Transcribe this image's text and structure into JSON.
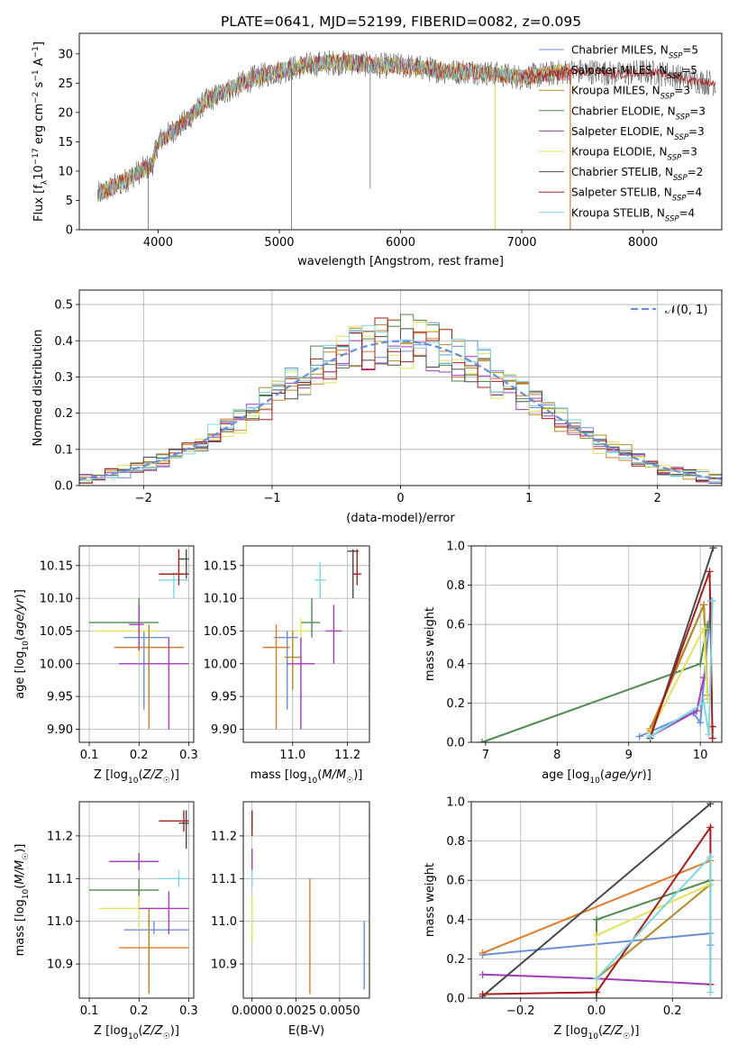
{
  "figure_title": "PLATE=0641, MJD=52199, FIBERID=0082, z=0.095",
  "colors": [
    "#6b8fd6",
    "#e07b27",
    "#b08a25",
    "#4f8a4f",
    "#a43bbd",
    "#e3e35a",
    "#4a4a4a",
    "#a91c1c",
    "#7dd7e0"
  ],
  "chart_data": [
    {
      "id": "spectrum",
      "type": "line",
      "title": "PLATE=0641, MJD=52199, FIBERID=0082, z=0.095",
      "xlabel": "wavelength [Angstrom, rest frame]",
      "ylabel": "Flux [f_λ 10^{-17} erg cm^{-2} s^{-1} A^{-1}]",
      "xlim": [
        3350,
        8650
      ],
      "ylim": [
        0,
        33.5
      ],
      "xticks": [
        "4000",
        "5000",
        "6000",
        "7000",
        "8000"
      ],
      "yticks": [
        "0",
        "5",
        "10",
        "15",
        "20",
        "25",
        "30"
      ],
      "legend_position": "top-right",
      "legend": [
        {
          "main": "Chabrier MILES, N",
          "sub": "SSP",
          "tail": "=5"
        },
        {
          "main": "Salpeter MILES, N",
          "sub": "SSP",
          "tail": "=5"
        },
        {
          "main": "Kroupa MILES, N",
          "sub": "SSP",
          "tail": "=3"
        },
        {
          "main": "Chabrier ELODIE, N",
          "sub": "SSP",
          "tail": "=3"
        },
        {
          "main": "Salpeter ELODIE, N",
          "sub": "SSP",
          "tail": "=3"
        },
        {
          "main": "Kroupa ELODIE, N",
          "sub": "SSP",
          "tail": "=3"
        },
        {
          "main": "Chabrier STELIB, N",
          "sub": "SSP",
          "tail": "=2"
        },
        {
          "main": "Salpeter STELIB, N",
          "sub": "SSP",
          "tail": "=4"
        },
        {
          "main": "Kroupa STELIB, N",
          "sub": "SSP",
          "tail": "=4"
        }
      ],
      "continuum": {
        "x": [
          3500,
          3700,
          3850,
          3950,
          4000,
          4200,
          4400,
          4600,
          4800,
          5000,
          5200,
          5400,
          5600,
          5800,
          6000,
          6200,
          6400,
          6600,
          6800,
          7000,
          7200,
          7400,
          7600,
          7800,
          8000,
          8200,
          8400,
          8600
        ],
        "y": [
          6,
          8,
          10,
          11,
          15,
          18,
          22,
          24,
          26,
          27,
          28,
          28.5,
          28.5,
          28,
          28,
          27.5,
          27,
          27,
          26.5,
          26,
          26.5,
          27,
          27,
          26.5,
          27,
          26.5,
          25.5,
          25
        ]
      },
      "model_range": [
        3500,
        7400
      ],
      "spikes": [
        {
          "x": 5100,
          "ymin": 0
        },
        {
          "x": 5750,
          "ymin": 7
        },
        {
          "x": 6780,
          "ymin": 0
        },
        {
          "x": 7400,
          "ymin": 0
        },
        {
          "x": 3920,
          "ymin": 0
        }
      ]
    },
    {
      "id": "residuals",
      "type": "histogram",
      "xlabel": "(data-model)/error",
      "ylabel": "Normed distribution",
      "xlim": [
        -2.5,
        2.5
      ],
      "ylim": [
        0,
        0.54
      ],
      "xticks": [
        "−2",
        "−1",
        "0",
        "1",
        "2"
      ],
      "yticks": [
        "0.0",
        "0.1",
        "0.2",
        "0.3",
        "0.4",
        "0.5"
      ],
      "legend_position": "top-right",
      "gaussian_label": "𝒩(0, 1)",
      "bin_width": 0.1
    },
    {
      "id": "age_vs_z",
      "type": "scatter",
      "xlabel": "Z [log10(Z/Z☉)]",
      "ylabel": "age  [log10(age/yr)]",
      "xlim": [
        0.08,
        0.31
      ],
      "ylim": [
        9.88,
        10.18
      ],
      "xticks": [
        "0.1",
        "0.2",
        "0.3"
      ],
      "yticks": [
        "9.90",
        "9.95",
        "10.00",
        "10.05",
        "10.10",
        "10.15"
      ],
      "points": [
        {
          "c": 0,
          "x": 0.21,
          "xe": [
            0.17,
            0.26
          ],
          "y": 10.04,
          "ye": [
            9.93,
            10.05
          ]
        },
        {
          "c": 1,
          "x": 0.22,
          "xe": [
            0.15,
            0.29
          ],
          "y": 10.025,
          "ye": [
            9.9,
            10.03
          ]
        },
        {
          "c": 8,
          "x": 0.27,
          "xe": [
            0.24,
            0.3
          ],
          "y": 10.128,
          "ye": [
            10.1,
            10.14
          ]
        },
        {
          "c": 3,
          "x": 0.2,
          "xe": [
            0.1,
            0.24
          ],
          "y": 10.063,
          "ye": [
            10.02,
            10.1
          ]
        },
        {
          "c": 5,
          "x": 0.2,
          "xe": [
            0.11,
            0.24
          ],
          "y": 10.05,
          "ye": [
            10.01,
            10.07
          ]
        },
        {
          "c": 4,
          "x": 0.2,
          "xe": [
            0.18,
            0.21
          ],
          "y": 10.06,
          "ye": [
            10.02,
            10.09
          ]
        },
        {
          "c": 6,
          "x": 0.295,
          "xe": [
            0.28,
            0.3
          ],
          "y": 10.16,
          "ye": [
            10.13,
            10.175
          ]
        },
        {
          "c": 7,
          "x": 0.28,
          "xe": [
            0.24,
            0.3
          ],
          "y": 10.137,
          "ye": [
            10.12,
            10.175
          ]
        },
        {
          "c": 2,
          "x": 0.22,
          "xe": [
            0.22,
            0.22
          ],
          "y": 10.01,
          "ye": [
            9.95,
            10.06
          ]
        },
        {
          "c": 4,
          "x": 0.26,
          "xe": [
            0.16,
            0.3
          ],
          "y": 10.0,
          "ye": [
            9.9,
            10.04
          ]
        }
      ]
    },
    {
      "id": "age_vs_mass",
      "type": "scatter",
      "xlabel": "mass [log10(M/M☉)]",
      "ylabel": "",
      "xlim": [
        10.82,
        11.28
      ],
      "ylim": [
        9.88,
        10.18
      ],
      "xticks": [
        "11.0",
        "11.2"
      ],
      "yticks": [
        "9.90",
        "9.95",
        "10.00",
        "10.05",
        "10.10",
        "10.15"
      ],
      "points": [
        {
          "c": 0,
          "x": 10.98,
          "xe": [
            10.93,
            11.02
          ],
          "y": 10.04,
          "ye": [
            9.93,
            10.05
          ]
        },
        {
          "c": 1,
          "x": 10.94,
          "xe": [
            10.89,
            10.99
          ],
          "y": 10.025,
          "ye": [
            9.9,
            10.06
          ]
        },
        {
          "c": 8,
          "x": 11.1,
          "xe": [
            11.08,
            11.12
          ],
          "y": 10.128,
          "ye": [
            10.1,
            10.155
          ]
        },
        {
          "c": 3,
          "x": 11.07,
          "xe": [
            11.03,
            11.1
          ],
          "y": 10.063,
          "ye": [
            10.04,
            10.1
          ]
        },
        {
          "c": 5,
          "x": 11.03,
          "xe": [
            11.0,
            11.06
          ],
          "y": 10.05,
          "ye": [
            10.03,
            10.07
          ]
        },
        {
          "c": 4,
          "x": 11.15,
          "xe": [
            11.12,
            11.18
          ],
          "y": 10.05,
          "ye": [
            10.0,
            10.09
          ]
        },
        {
          "c": 6,
          "x": 11.22,
          "xe": [
            11.2,
            11.24
          ],
          "y": 10.172,
          "ye": [
            10.1,
            10.175
          ]
        },
        {
          "c": 7,
          "x": 11.235,
          "xe": [
            11.22,
            11.25
          ],
          "y": 10.137,
          "ye": [
            10.12,
            10.175
          ]
        },
        {
          "c": 2,
          "x": 11.0,
          "xe": [
            10.97,
            11.03
          ],
          "y": 10.01,
          "ye": [
            9.96,
            10.05
          ]
        },
        {
          "c": 4,
          "x": 11.03,
          "xe": [
            10.98,
            11.08
          ],
          "y": 10.0,
          "ye": [
            9.9,
            10.04
          ]
        }
      ]
    },
    {
      "id": "weight_vs_age",
      "type": "line",
      "xlabel": "age  [log10(age/yr)]",
      "ylabel": "mass weight",
      "xlim": [
        6.8,
        10.3
      ],
      "ylim": [
        0,
        1.0
      ],
      "xticks": [
        "7",
        "8",
        "9",
        "10"
      ],
      "yticks": [
        "0.0",
        "0.2",
        "0.4",
        "0.6",
        "0.8",
        "1.0"
      ],
      "series": [
        {
          "c": 0,
          "points": [
            [
              9.15,
              0.03
            ],
            [
              9.9,
              0.15
            ],
            [
              10.0,
              0.1
            ],
            [
              10.15,
              0.72
            ]
          ]
        },
        {
          "c": 1,
          "points": [
            [
              9.3,
              0.07
            ],
            [
              10.05,
              0.7
            ],
            [
              10.1,
              0.22
            ]
          ]
        },
        {
          "c": 2,
          "points": [
            [
              9.3,
              0.06
            ],
            [
              10.05,
              0.7
            ],
            [
              10.1,
              0.24
            ]
          ]
        },
        {
          "c": 3,
          "points": [
            [
              6.95,
              0.0
            ],
            [
              10.0,
              0.4
            ],
            [
              10.1,
              0.6
            ]
          ]
        },
        {
          "c": 4,
          "points": [
            [
              9.3,
              0.03
            ],
            [
              9.95,
              0.16
            ],
            [
              10.05,
              0.33
            ]
          ]
        },
        {
          "c": 5,
          "points": [
            [
              9.3,
              0.05
            ],
            [
              10.05,
              0.58
            ],
            [
              10.1,
              0.22
            ]
          ]
        },
        {
          "c": 6,
          "points": [
            [
              9.3,
              0.02
            ],
            [
              10.18,
              0.99
            ]
          ]
        },
        {
          "c": 7,
          "points": [
            [
              9.3,
              0.03
            ],
            [
              10.13,
              0.87
            ],
            [
              10.17,
              0.02
            ],
            [
              10.17,
              0.08
            ]
          ]
        },
        {
          "c": 8,
          "points": [
            [
              9.3,
              0.03
            ],
            [
              10.05,
              0.2
            ],
            [
              10.12,
              0.04
            ],
            [
              10.17,
              0.72
            ]
          ]
        }
      ]
    },
    {
      "id": "mass_vs_z",
      "type": "scatter",
      "xlabel": "Z [log10(Z/Z☉)]",
      "ylabel": "mass [log10(M/M☉)]",
      "xlim": [
        0.08,
        0.31
      ],
      "ylim": [
        10.82,
        11.28
      ],
      "xticks": [
        "0.1",
        "0.2",
        "0.3"
      ],
      "yticks": [
        "10.9",
        "11.0",
        "11.1",
        "11.2"
      ],
      "points": [
        {
          "c": 0,
          "x": 0.23,
          "xe": [
            0.17,
            0.3
          ],
          "y": 10.98,
          "ye": [
            10.97,
            11.0
          ]
        },
        {
          "c": 1,
          "x": 0.22,
          "xe": [
            0.16,
            0.3
          ],
          "y": 10.938,
          "ye": [
            10.83,
            10.95
          ]
        },
        {
          "c": 8,
          "x": 0.28,
          "xe": [
            0.24,
            0.3
          ],
          "y": 11.1,
          "ye": [
            11.08,
            11.12
          ]
        },
        {
          "c": 3,
          "x": 0.2,
          "xe": [
            0.1,
            0.24
          ],
          "y": 11.073,
          "ye": [
            11.03,
            11.1
          ]
        },
        {
          "c": 5,
          "x": 0.2,
          "xe": [
            0.12,
            0.24
          ],
          "y": 11.03,
          "ye": [
            10.98,
            11.06
          ]
        },
        {
          "c": 4,
          "x": 0.2,
          "xe": [
            0.14,
            0.24
          ],
          "y": 11.14,
          "ye": [
            11.12,
            11.16
          ]
        },
        {
          "c": 6,
          "x": 0.295,
          "xe": [
            0.28,
            0.3
          ],
          "y": 11.23,
          "ye": [
            11.17,
            11.26
          ]
        },
        {
          "c": 7,
          "x": 0.29,
          "xe": [
            0.24,
            0.3
          ],
          "y": 11.235,
          "ye": [
            11.21,
            11.26
          ]
        },
        {
          "c": 2,
          "x": 0.22,
          "xe": [
            0.22,
            0.22
          ],
          "y": 10.97,
          "ye": [
            10.84,
            11.03
          ]
        },
        {
          "c": 4,
          "x": 0.26,
          "xe": [
            0.2,
            0.3
          ],
          "y": 11.03,
          "ye": [
            10.97,
            11.07
          ]
        }
      ]
    },
    {
      "id": "mass_vs_ebv",
      "type": "scatter",
      "xlabel": "E(B-V)",
      "ylabel": "",
      "xlim": [
        -0.0005,
        0.0067
      ],
      "ylim": [
        10.82,
        11.28
      ],
      "xticks": [
        "0.0000",
        "0.0025",
        "0.0050"
      ],
      "yticks": [
        "10.9",
        "11.0",
        "11.1",
        "11.2"
      ],
      "points": [
        {
          "c": 0,
          "x": 0.0064,
          "xe": [
            0.0064,
            0.0064
          ],
          "y": 10.95,
          "ye": [
            10.84,
            11.0
          ]
        },
        {
          "c": 1,
          "x": 0.0033,
          "xe": [
            0.0033,
            0.0033
          ],
          "y": 10.95,
          "ye": [
            10.83,
            11.1
          ]
        },
        {
          "c": 5,
          "x": 0.0,
          "xe": [
            0.0,
            0.0
          ],
          "y": 11.0,
          "ye": [
            10.95,
            11.06
          ]
        },
        {
          "c": 4,
          "x": 0.0,
          "xe": [
            0.0,
            0.0
          ],
          "y": 11.15,
          "ye": [
            11.12,
            11.17
          ]
        },
        {
          "c": 7,
          "x": 0.0,
          "xe": [
            0.0,
            0.0
          ],
          "y": 11.23,
          "ye": [
            11.2,
            11.26
          ]
        },
        {
          "c": 8,
          "x": 0.0,
          "xe": [
            0.0,
            0.0
          ],
          "y": 11.1,
          "ye": [
            11.08,
            11.12
          ]
        }
      ]
    },
    {
      "id": "weight_vs_z",
      "type": "line",
      "xlabel": "Z [log10(Z/Z☉)]",
      "ylabel": "mass weight",
      "xlim": [
        -0.33,
        0.33
      ],
      "ylim": [
        0,
        1.0
      ],
      "xticks": [
        "−0.2",
        "0.0",
        "0.2"
      ],
      "yticks": [
        "0.0",
        "0.2",
        "0.4",
        "0.6",
        "0.8",
        "1.0"
      ],
      "series": [
        {
          "c": 0,
          "points": [
            [
              -0.3,
              0.22
            ],
            [
              0.3,
              0.33
            ],
            [
              0.3,
              0.27
            ]
          ]
        },
        {
          "c": 1,
          "points": [
            [
              -0.3,
              0.23
            ],
            [
              0.3,
              0.7
            ]
          ]
        },
        {
          "c": 2,
          "points": [
            [
              0.0,
              0.1
            ],
            [
              0.3,
              0.58
            ]
          ]
        },
        {
          "c": 3,
          "points": [
            [
              0.0,
              0.0
            ],
            [
              0.0,
              0.4
            ],
            [
              0.3,
              0.6
            ]
          ]
        },
        {
          "c": 4,
          "points": [
            [
              -0.3,
              0.12
            ],
            [
              0.0,
              0.1
            ],
            [
              0.3,
              0.07
            ]
          ]
        },
        {
          "c": 5,
          "points": [
            [
              0.0,
              0.05
            ],
            [
              0.0,
              0.32
            ],
            [
              0.3,
              0.58
            ]
          ]
        },
        {
          "c": 6,
          "points": [
            [
              -0.3,
              0.01
            ],
            [
              0.3,
              0.99
            ]
          ]
        },
        {
          "c": 7,
          "points": [
            [
              -0.3,
              0.02
            ],
            [
              0.0,
              0.03
            ],
            [
              0.3,
              0.87
            ],
            [
              0.3,
              0.07
            ]
          ]
        },
        {
          "c": 8,
          "points": [
            [
              0.0,
              0.1
            ],
            [
              0.3,
              0.72
            ],
            [
              0.3,
              0.03
            ]
          ]
        }
      ]
    }
  ]
}
